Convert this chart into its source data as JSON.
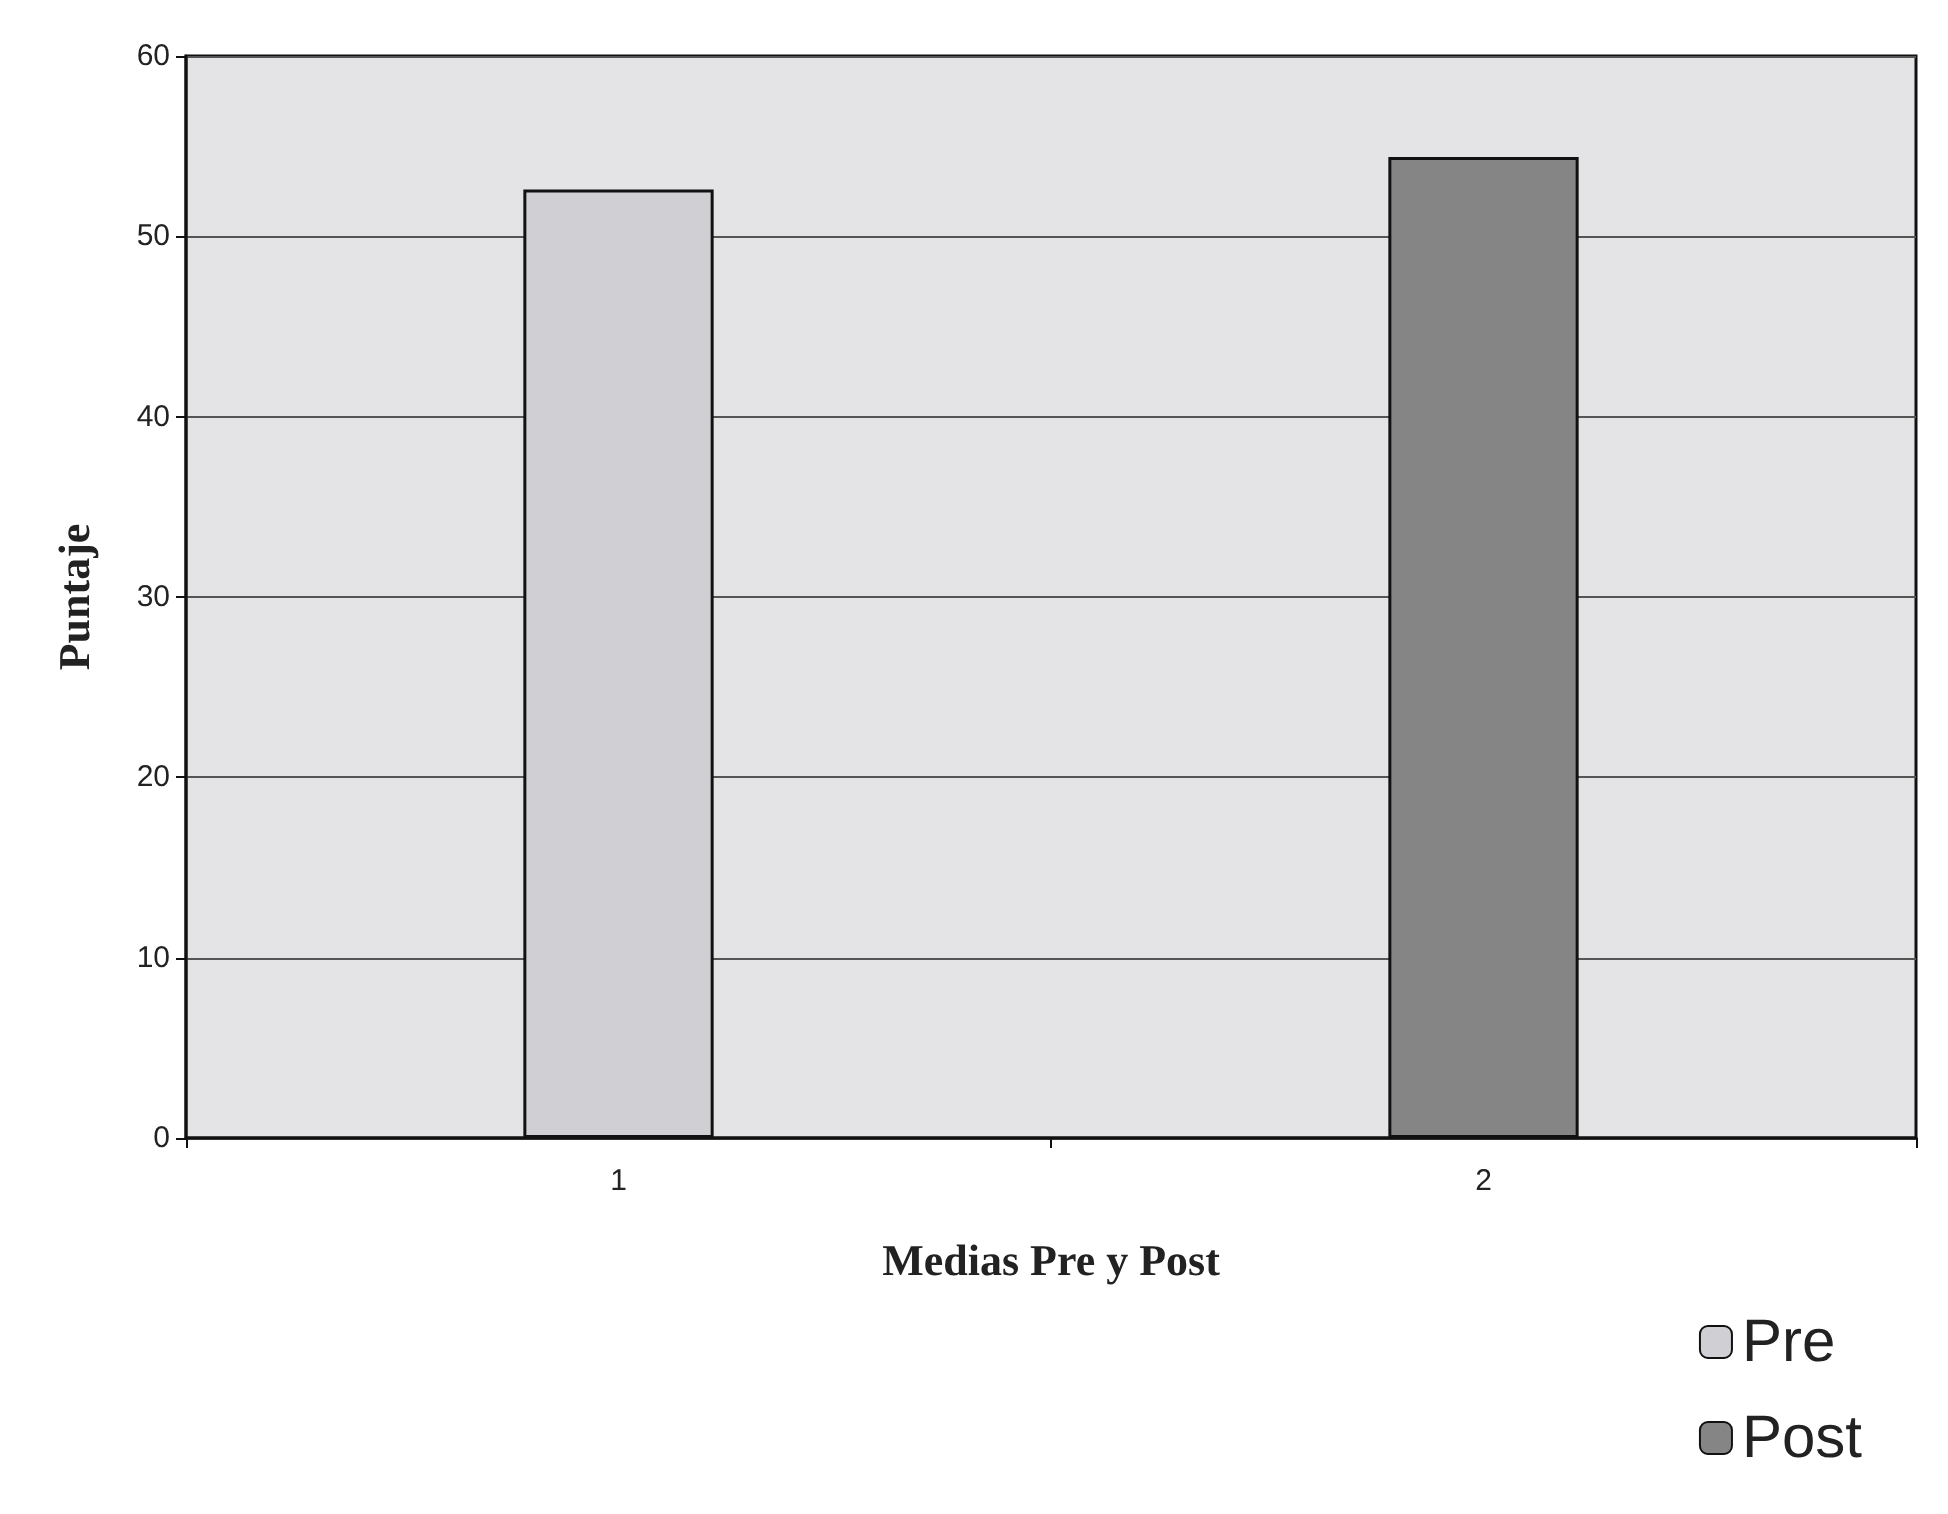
{
  "chart_data": {
    "type": "bar",
    "xlabel": "Medias Pre y Post",
    "ylabel": "Puntaje",
    "categories": [
      "1",
      "2"
    ],
    "series": [
      {
        "name": "Pre",
        "color": "#d0d0d4",
        "values": [
          52.6,
          null
        ]
      },
      {
        "name": "Post",
        "color": "#858585",
        "values": [
          null,
          54.4
        ]
      }
    ],
    "ylim": [
      0,
      60
    ],
    "yticks": [
      0,
      10,
      20,
      30,
      40,
      50,
      60
    ],
    "grid": "y",
    "legend": "bottom right"
  }
}
